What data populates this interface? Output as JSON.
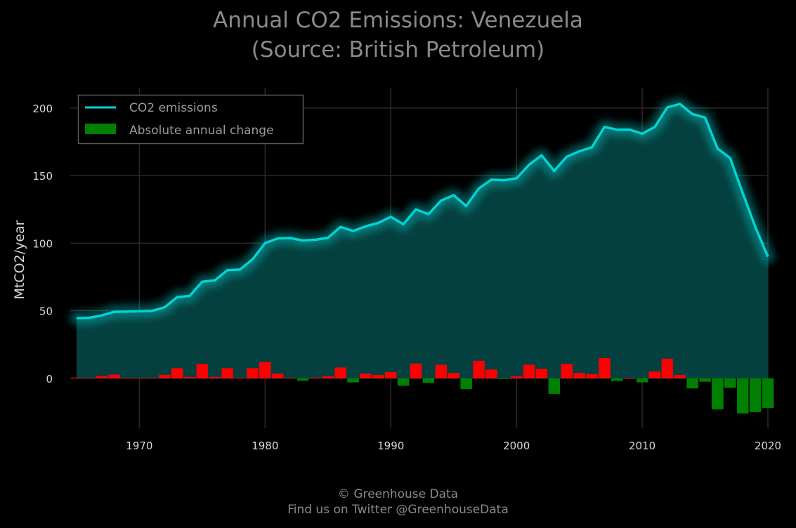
{
  "title_line1": "Annual CO2 Emissions: Venezuela",
  "title_line2": "(Source: British Petroleum)",
  "footer_line1": "© Greenhouse Data",
  "footer_line2": "Find us on Twitter @GreenhouseData",
  "colors": {
    "background": "#000000",
    "line": "#00d4d4",
    "area": "#04403f",
    "increase": "#ff0000",
    "decrease": "#008000",
    "grid": "#2a2a2a"
  },
  "chart_data": {
    "type": "line",
    "title": "Annual CO2 Emissions: Venezuela\n(Source: British Petroleum)",
    "xlabel": "",
    "ylabel": "MtCO2/year",
    "xlim": [
      1964.5,
      2020
    ],
    "ylim": [
      -37,
      215
    ],
    "xticks": [
      1970,
      1980,
      1990,
      2000,
      2010,
      2020
    ],
    "yticks": [
      0,
      50,
      100,
      150,
      200
    ],
    "grid": true,
    "legend_position": "top-left",
    "x": [
      1965,
      1966,
      1967,
      1968,
      1969,
      1970,
      1971,
      1972,
      1973,
      1974,
      1975,
      1976,
      1977,
      1978,
      1979,
      1980,
      1981,
      1982,
      1983,
      1984,
      1985,
      1986,
      1987,
      1988,
      1989,
      1990,
      1991,
      1992,
      1993,
      1994,
      1995,
      1996,
      1997,
      1998,
      1999,
      2000,
      2001,
      2002,
      2003,
      2004,
      2005,
      2006,
      2007,
      2008,
      2009,
      2010,
      2011,
      2012,
      2013,
      2014,
      2015,
      2016,
      2017,
      2018,
      2019,
      2020
    ],
    "series": [
      {
        "name": "CO2 emissions",
        "kind": "line",
        "values": [
          44.5,
          44.8,
          46.5,
          49.2,
          49.4,
          49.6,
          49.9,
          52.5,
          60,
          61,
          71.5,
          72.5,
          80,
          80.5,
          88,
          100,
          103.5,
          103.8,
          102,
          102.5,
          104,
          112,
          109,
          112.5,
          115,
          119.5,
          114,
          125,
          121.5,
          131.5,
          135.5,
          127.5,
          140.5,
          147,
          146.5,
          148,
          158,
          165,
          153.5,
          164,
          168,
          171,
          186,
          184,
          184,
          181,
          186,
          200.5,
          203,
          195.5,
          193,
          170,
          163,
          137,
          112,
          90
        ]
      },
      {
        "name": "Absolute annual change",
        "kind": "bar",
        "values": [
          0.5,
          0.3,
          1.7,
          2.7,
          0.2,
          0.2,
          0.3,
          2.6,
          7.5,
          1,
          10.5,
          1,
          7.5,
          0.5,
          7.5,
          12,
          3.5,
          0.3,
          -1.8,
          0.5,
          1.5,
          8,
          -3,
          3.5,
          2.5,
          4.5,
          -5.5,
          11,
          -3.5,
          10,
          4,
          -8,
          13,
          6.5,
          -0.5,
          1.5,
          10,
          7,
          -11.5,
          10.5,
          4,
          3,
          15,
          -2,
          0,
          -3,
          5,
          14.5,
          2.5,
          -7.5,
          -2.5,
          -23,
          -7,
          -26,
          -25,
          -22
        ]
      }
    ]
  }
}
